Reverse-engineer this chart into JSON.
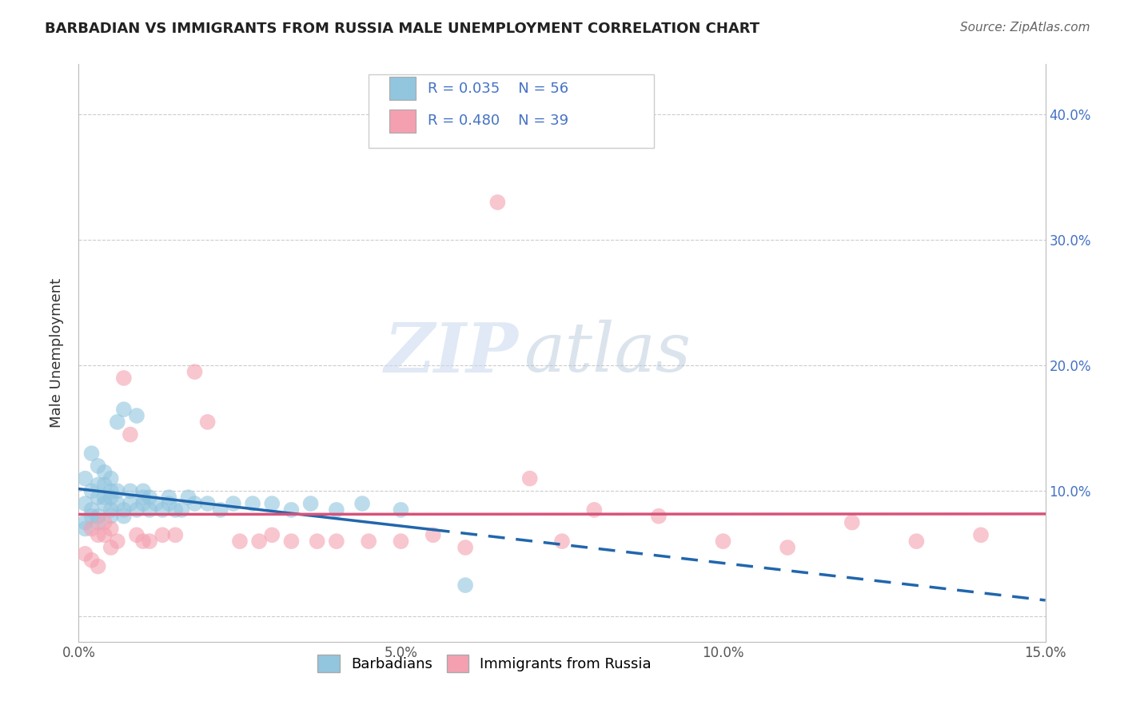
{
  "title": "BARBADIAN VS IMMIGRANTS FROM RUSSIA MALE UNEMPLOYMENT CORRELATION CHART",
  "source": "Source: ZipAtlas.com",
  "ylabel_label": "Male Unemployment",
  "watermark_zip": "ZIP",
  "watermark_atlas": "atlas",
  "xlim": [
    0.0,
    0.15
  ],
  "ylim": [
    -0.02,
    0.44
  ],
  "xticks": [
    0.0,
    0.05,
    0.1,
    0.15
  ],
  "xtick_labels": [
    "0.0%",
    "5.0%",
    "10.0%",
    "15.0%"
  ],
  "yticks": [
    0.0,
    0.1,
    0.2,
    0.3,
    0.4
  ],
  "ytick_labels_right": [
    "",
    "10.0%",
    "20.0%",
    "30.0%",
    "40.0%"
  ],
  "legend_r1": "R = 0.035",
  "legend_n1": "N = 56",
  "legend_r2": "R = 0.480",
  "legend_n2": "N = 39",
  "color_blue": "#92c5de",
  "color_pink": "#f4a0b0",
  "color_blue_line": "#2166ac",
  "color_pink_line": "#d6537a",
  "color_title": "#222222",
  "color_source": "#666666",
  "color_rn": "#4472C4",
  "background_color": "#ffffff",
  "grid_color": "#cccccc",
  "barbadian_x": [
    0.001,
    0.001,
    0.002,
    0.002,
    0.002,
    0.003,
    0.003,
    0.003,
    0.003,
    0.004,
    0.004,
    0.004,
    0.004,
    0.005,
    0.005,
    0.005,
    0.005,
    0.006,
    0.006,
    0.006,
    0.007,
    0.007,
    0.008,
    0.008,
    0.009,
    0.009,
    0.01,
    0.01,
    0.01,
    0.011,
    0.011,
    0.012,
    0.013,
    0.014,
    0.014,
    0.015,
    0.016,
    0.017,
    0.018,
    0.02,
    0.022,
    0.024,
    0.027,
    0.03,
    0.033,
    0.036,
    0.04,
    0.044,
    0.05,
    0.001,
    0.001,
    0.002,
    0.003,
    0.005,
    0.007,
    0.06
  ],
  "barbadian_y": [
    0.09,
    0.11,
    0.085,
    0.1,
    0.13,
    0.08,
    0.095,
    0.105,
    0.12,
    0.09,
    0.095,
    0.105,
    0.115,
    0.085,
    0.095,
    0.1,
    0.11,
    0.09,
    0.1,
    0.155,
    0.085,
    0.165,
    0.09,
    0.1,
    0.085,
    0.16,
    0.09,
    0.095,
    0.1,
    0.085,
    0.095,
    0.09,
    0.085,
    0.09,
    0.095,
    0.085,
    0.085,
    0.095,
    0.09,
    0.09,
    0.085,
    0.09,
    0.09,
    0.09,
    0.085,
    0.09,
    0.085,
    0.09,
    0.085,
    0.07,
    0.075,
    0.08,
    0.075,
    0.08,
    0.08,
    0.025
  ],
  "russia_x": [
    0.001,
    0.002,
    0.002,
    0.003,
    0.003,
    0.004,
    0.004,
    0.005,
    0.005,
    0.006,
    0.007,
    0.008,
    0.009,
    0.01,
    0.011,
    0.013,
    0.015,
    0.018,
    0.02,
    0.025,
    0.028,
    0.03,
    0.033,
    0.037,
    0.04,
    0.045,
    0.05,
    0.055,
    0.06,
    0.065,
    0.07,
    0.075,
    0.08,
    0.09,
    0.1,
    0.11,
    0.12,
    0.13,
    0.14
  ],
  "russia_y": [
    0.05,
    0.045,
    0.07,
    0.04,
    0.065,
    0.065,
    0.075,
    0.055,
    0.07,
    0.06,
    0.19,
    0.145,
    0.065,
    0.06,
    0.06,
    0.065,
    0.065,
    0.195,
    0.155,
    0.06,
    0.06,
    0.065,
    0.06,
    0.06,
    0.06,
    0.06,
    0.06,
    0.065,
    0.055,
    0.33,
    0.11,
    0.06,
    0.085,
    0.08,
    0.06,
    0.055,
    0.075,
    0.06,
    0.065
  ],
  "blue_line_solid_end": 0.055,
  "blue_line_dashed_start": 0.055,
  "blue_line_dashed_end": 0.15,
  "pink_line_start": 0.0,
  "pink_line_end": 0.15
}
